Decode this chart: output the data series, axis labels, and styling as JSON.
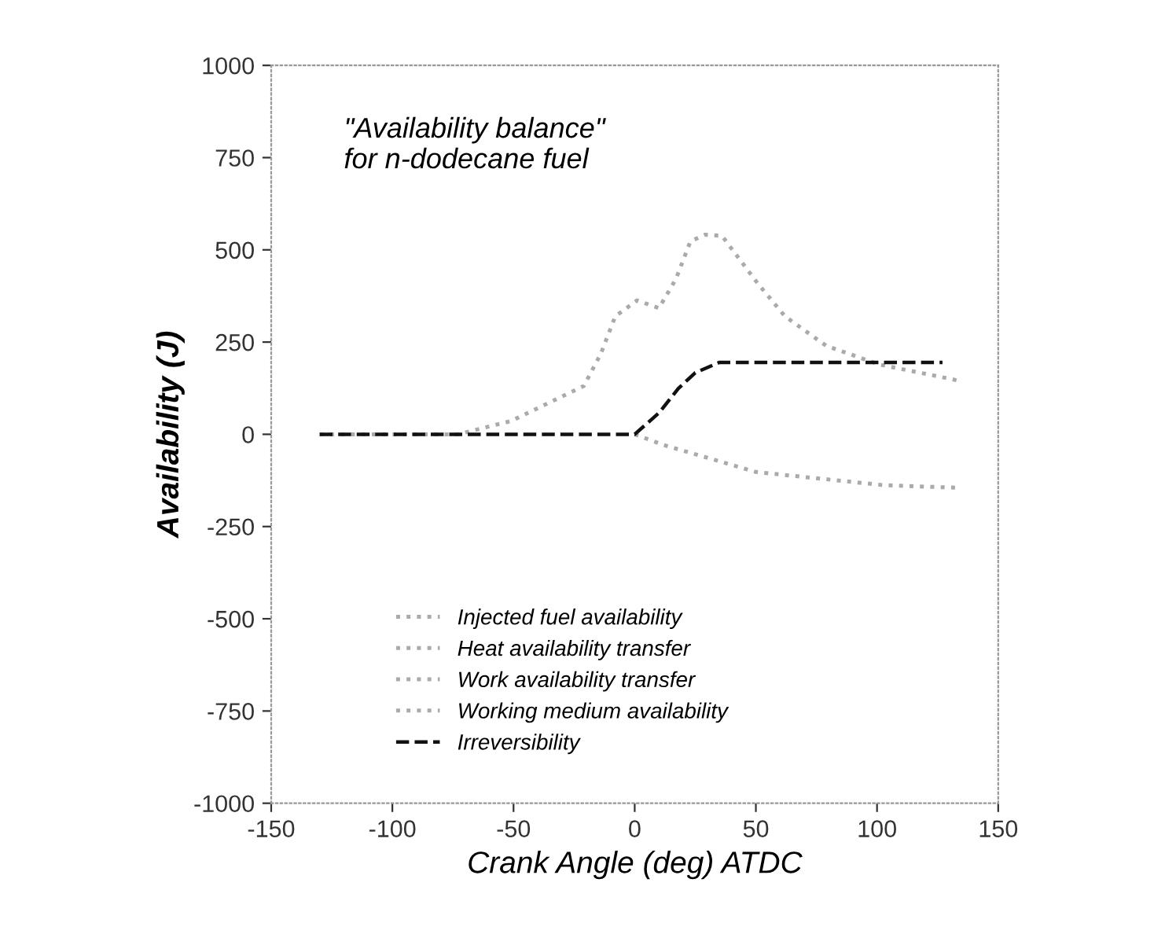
{
  "chart_data": {
    "type": "line",
    "title": "\"Availability balance\"\nfor n-dodecane fuel",
    "xlabel": "Crank Angle (deg) ATDC",
    "ylabel": "Availability (J)",
    "xlim": [
      -150,
      150
    ],
    "xticks": [
      -150,
      -100,
      -50,
      0,
      50,
      100,
      150
    ],
    "ylim": [
      -1000,
      1000
    ],
    "yticks": [
      -1000,
      -750,
      -500,
      -250,
      0,
      250,
      500,
      750,
      1000
    ],
    "grid": false,
    "legend": "bottom",
    "line_style": "dotted",
    "marker": "none",
    "series": [
      {
        "name": "Injected fuel availability",
        "color": "#aaaaaa"
      },
      {
        "name": "Heat availability transfer",
        "color": "#aaaaaa",
        "x": [
          0,
          12,
          50,
          66,
          103,
          134
        ],
        "values": [
          0,
          -29,
          -102,
          -113,
          -138,
          -145
        ]
      },
      {
        "name": "Work availability transfer",
        "color": "#aaaaaa"
      },
      {
        "name": "Working medium availability",
        "color": "#aaaaaa",
        "x": [
          -130,
          -73,
          -51,
          -21,
          -14,
          -8,
          1,
          10,
          17,
          23,
          29,
          36,
          51,
          62,
          79,
          101,
          123,
          134
        ],
        "values": [
          0,
          0,
          36,
          131,
          218,
          320,
          363,
          342,
          421,
          523,
          541,
          538,
          407,
          320,
          240,
          189,
          160,
          145
        ]
      },
      {
        "name": "Irreversibility",
        "color": "#111111",
        "line_style": "dashed",
        "x": [
          -130,
          0,
          10,
          18,
          25,
          35,
          80,
          127
        ],
        "values": [
          0,
          0,
          58,
          124,
          167,
          195,
          195,
          195
        ]
      }
    ]
  }
}
